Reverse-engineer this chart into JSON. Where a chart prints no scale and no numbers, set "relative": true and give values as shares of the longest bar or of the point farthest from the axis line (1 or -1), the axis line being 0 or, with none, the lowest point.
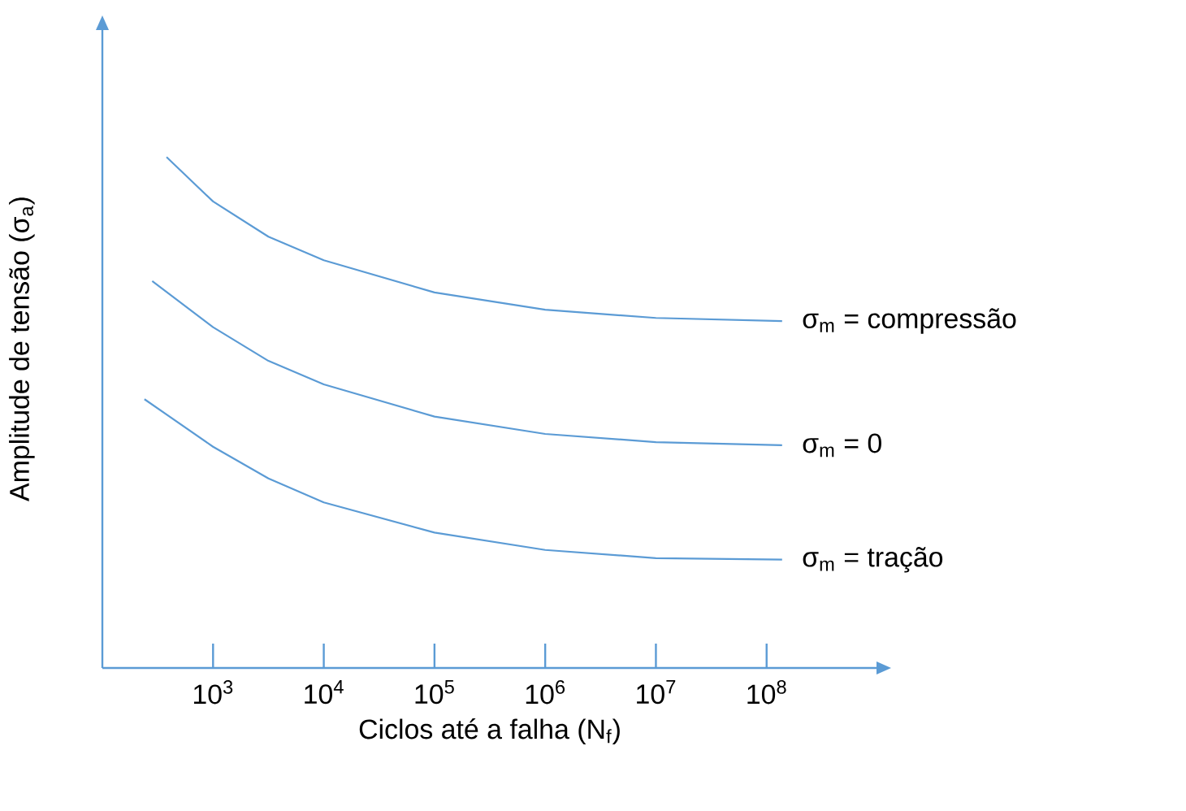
{
  "chart_data": {
    "type": "line",
    "relative": true,
    "log": "x",
    "xlabel": "Ciclos até a falha (N$_{f}$)",
    "ylabel": "Amplitude de tensão  (σ$_{a}$)",
    "xlim": [
      100,
      1000000000
    ],
    "xticks": [
      {
        "value": 1000,
        "label": "10$^{3}$"
      },
      {
        "value": 10000,
        "label": "10$^{4}$"
      },
      {
        "value": 100000,
        "label": "10$^{5}$"
      },
      {
        "value": 1000000,
        "label": "10$^{6}$"
      },
      {
        "value": 10000000,
        "label": "10$^{7}$"
      },
      {
        "value": 100000000,
        "label": "10$^{8}$"
      }
    ],
    "grid": false,
    "legend": false,
    "marker": "none",
    "line_style": "solid",
    "series": [
      {
        "name": "σ$_{m}$ = compressão",
        "color": "#5b9bd5",
        "x": [
          380,
          1000,
          3162,
          10000,
          100000,
          1000000,
          10000000,
          138000000
        ],
        "values": [
          1,
          0.913,
          0.844,
          0.798,
          0.735,
          0.701,
          0.685,
          0.679
        ]
      },
      {
        "name": "σ$_{m}$ = 0",
        "color": "#5b9bd5",
        "x": [
          282,
          1000,
          3162,
          10000,
          100000,
          1000000,
          10000000,
          138000000
        ],
        "values": [
          0.757,
          0.667,
          0.601,
          0.555,
          0.492,
          0.458,
          0.442,
          0.436
        ]
      },
      {
        "name": "σ$_{m}$ = tração",
        "color": "#5b9bd5",
        "x": [
          240,
          1000,
          3162,
          10000,
          100000,
          1000000,
          10000000,
          138000000
        ],
        "values": [
          0.526,
          0.433,
          0.371,
          0.324,
          0.265,
          0.231,
          0.215,
          0.212
        ]
      }
    ]
  }
}
